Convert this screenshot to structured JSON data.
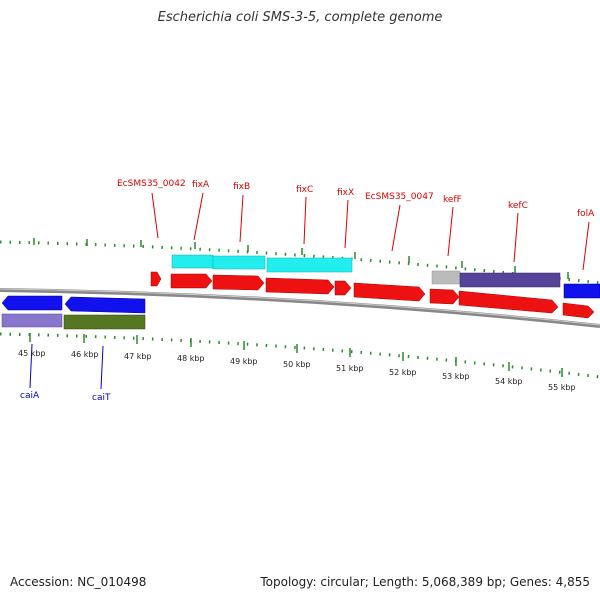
{
  "title": "Escherichia coli SMS-3-5, complete genome",
  "footer": {
    "accession_text": "Accession: NC_010498",
    "stats_text": "Topology: circular; Length: 5,068,389 bp; Genes: 4,855"
  },
  "colors": {
    "forward_label": "#dd0000",
    "reverse_label": "#0000cc",
    "tick": "#2a8a2a",
    "backbone": "#888888",
    "cds_forward": "#ee1111",
    "cds_reverse": "#1111ee",
    "rna_cyan": "#22eeee",
    "feature_purple": "#554499",
    "feature_lavender": "#8877cc",
    "feature_olive": "#557722",
    "feature_gray": "#bbbbbb"
  },
  "scale": {
    "unit": "kbp",
    "labels": [
      "45 kbp",
      "46 kbp",
      "47 kbp",
      "48 kbp",
      "49 kbp",
      "50 kbp",
      "51 kbp",
      "52 kbp",
      "53 kbp",
      "54 kbp",
      "55 kbp"
    ]
  },
  "forward_gene_labels": [
    "EcSMS35_0042",
    "fixA",
    "fixB",
    "fixC",
    "fixX",
    "EcSMS35_0047",
    "kefF",
    "kefC",
    "folA"
  ],
  "reverse_gene_labels": [
    "caiA",
    "caiT"
  ]
}
